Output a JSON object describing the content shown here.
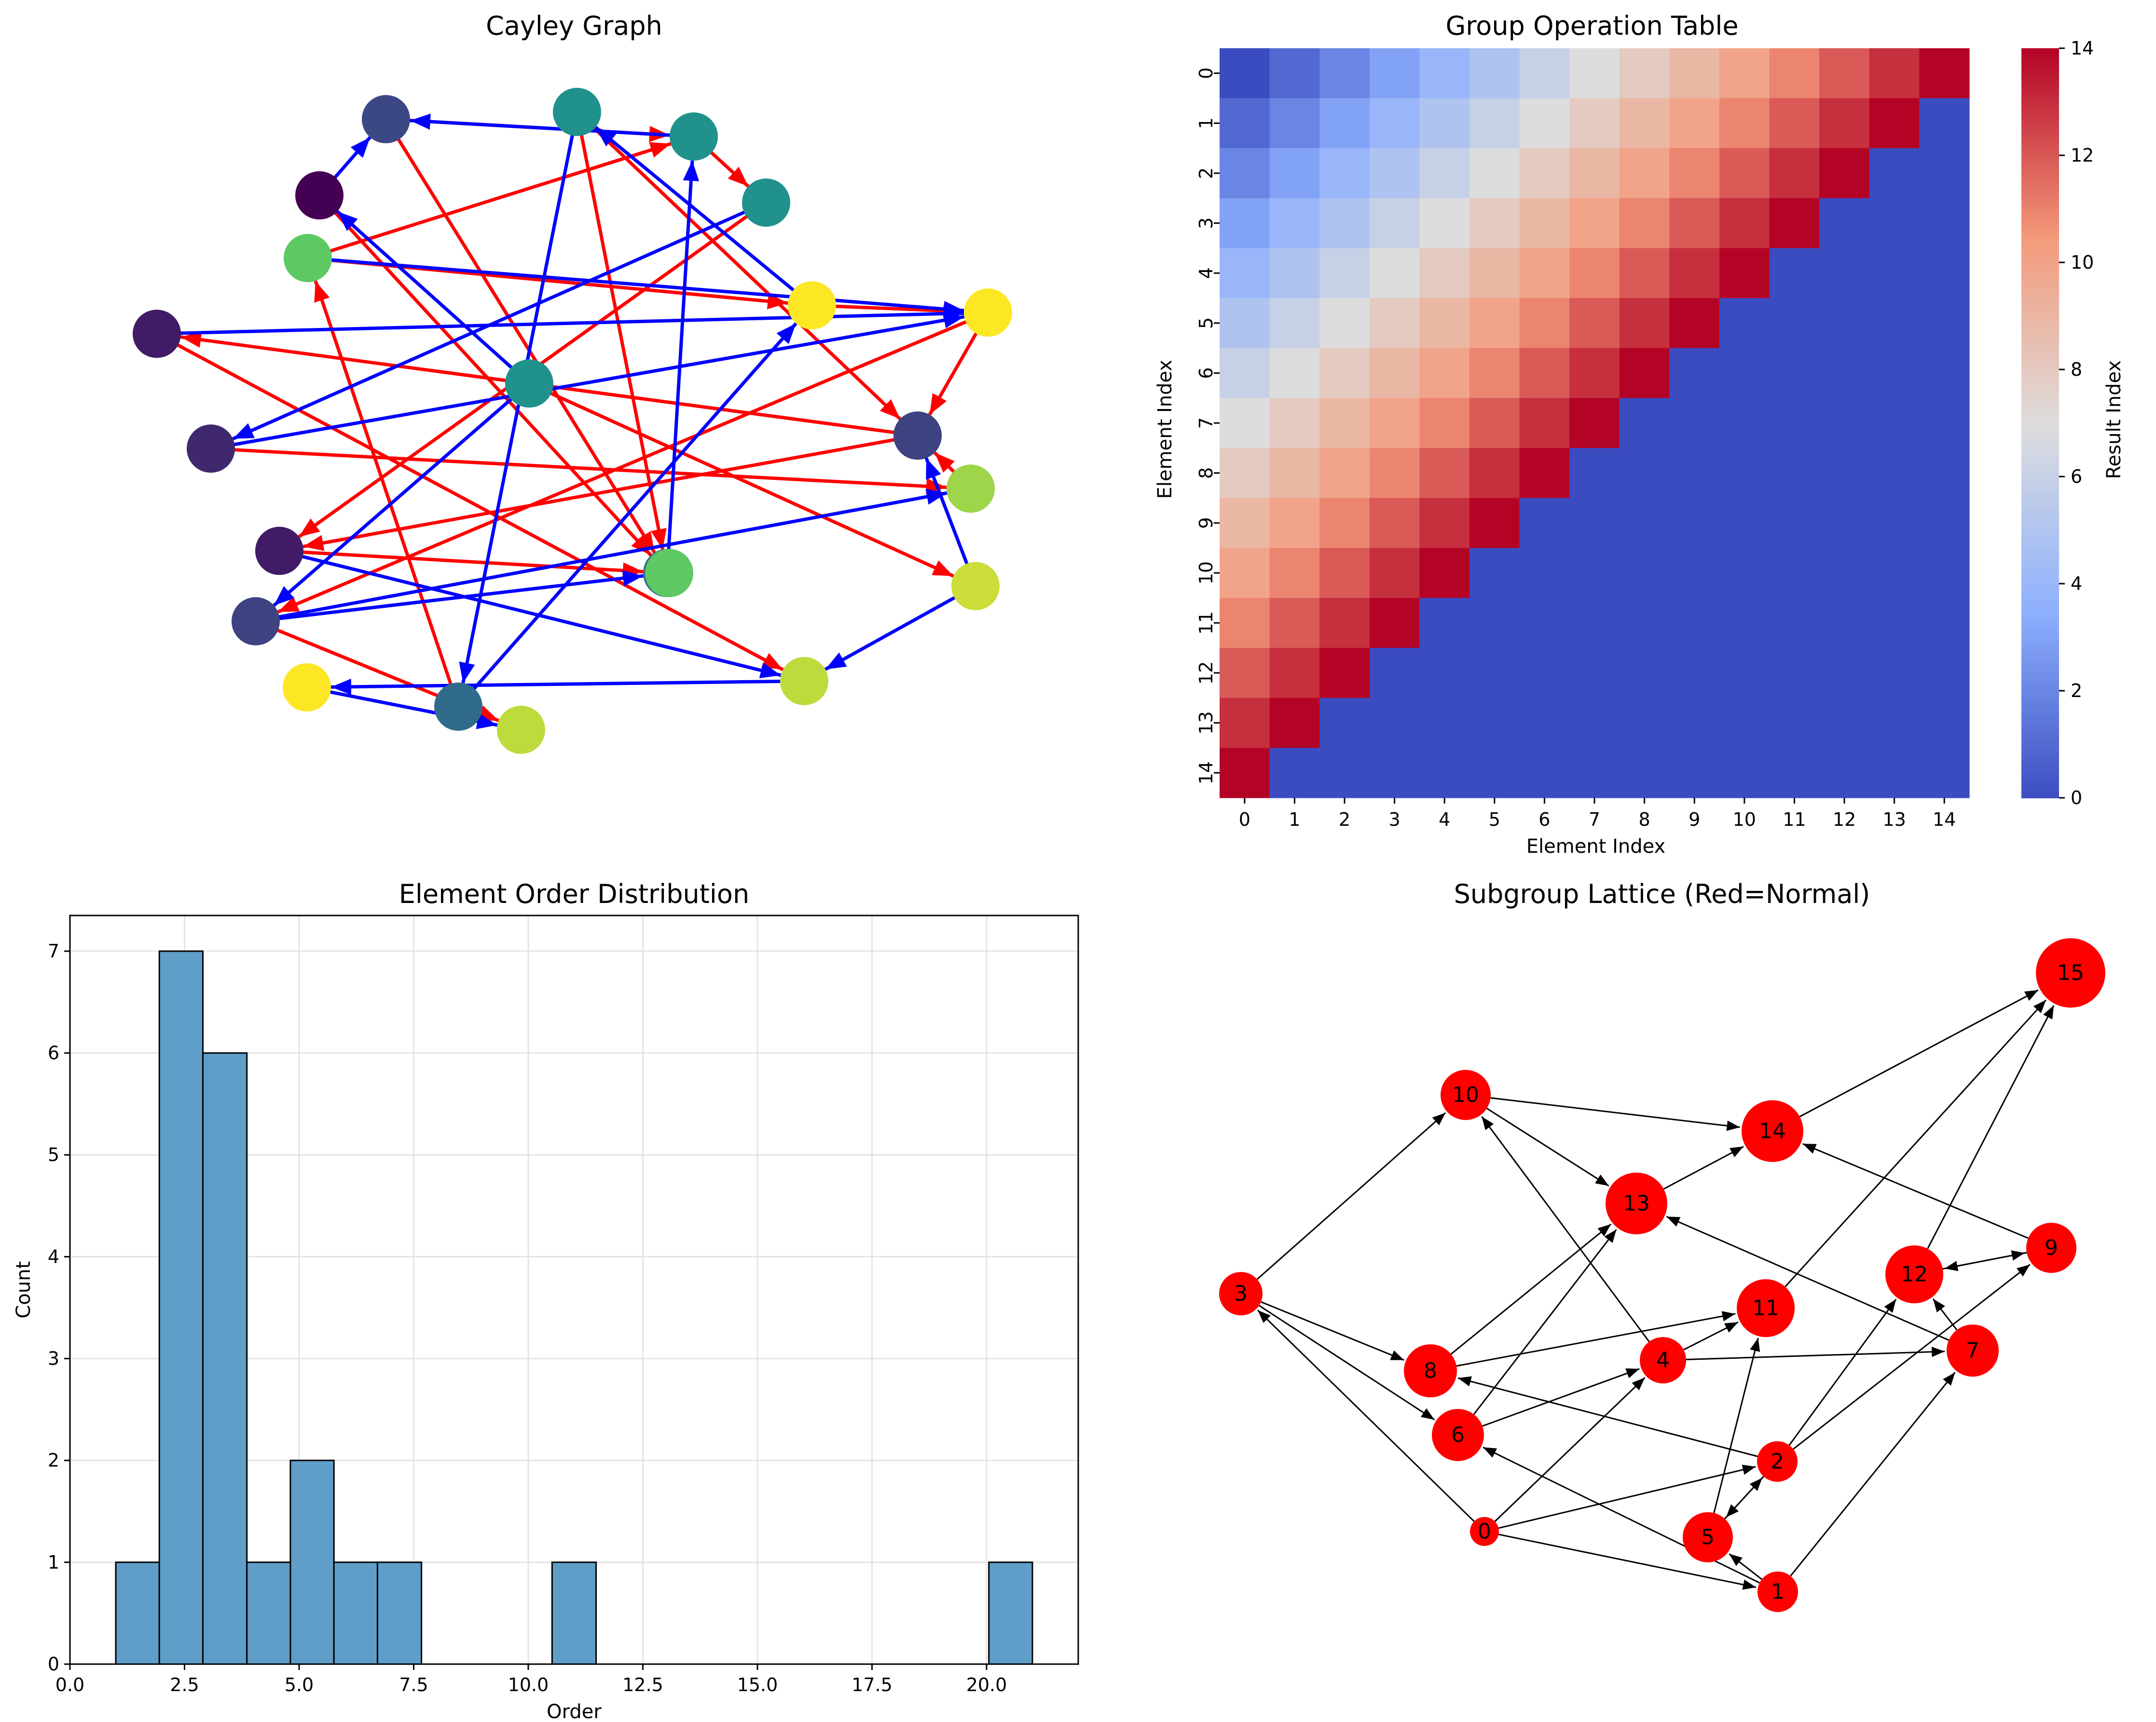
{
  "colors": {
    "red_edge": "#ff0000",
    "blue_edge": "#0000ff",
    "lattice_node": "#ff0000",
    "hist_bar": "#5f9ec9",
    "hist_edge": "#000000",
    "heat_low": "#3b4cc0",
    "heat_mid": "#dddddd",
    "heat_high": "#b40426"
  },
  "chart_data": [
    {
      "type": "network",
      "title": "Cayley Graph",
      "node_colormap": "viridis",
      "node_color_values": [
        0.0,
        0.22,
        0.5,
        0.5,
        0.5,
        0.75,
        0.08,
        1.0,
        0.5,
        1.0,
        0.2,
        0.12,
        0.08,
        0.85,
        0.35,
        0.9,
        0.2,
        0.92,
        1.0,
        0.35,
        0.9,
        0.75
      ],
      "edge_colors": [
        "red",
        "blue"
      ]
    },
    {
      "type": "heatmap",
      "title": "Group Operation Table",
      "xlabel": "Element Index",
      "ylabel": "Element Index",
      "x_ticks": [
        "0",
        "1",
        "2",
        "3",
        "4",
        "5",
        "6",
        "7",
        "8",
        "9",
        "10",
        "11",
        "12",
        "13",
        "14"
      ],
      "y_ticks": [
        "0",
        "1",
        "2",
        "3",
        "4",
        "5",
        "6",
        "7",
        "8",
        "9",
        "10",
        "11",
        "12",
        "13",
        "14"
      ],
      "colorbar": {
        "label": "Result Index",
        "ticks": [
          "0",
          "2",
          "4",
          "6",
          "8",
          "10",
          "12",
          "14"
        ],
        "range": [
          0,
          14
        ]
      },
      "colormap": "coolwarm",
      "rule": "value = i + j if i + j <= 14 else 0"
    },
    {
      "type": "bar",
      "title": "Element Order Distribution",
      "xlabel": "Order",
      "ylabel": "Count",
      "xlim": [
        0,
        22
      ],
      "ylim": [
        0,
        7.35
      ],
      "x_ticks": [
        "0.0",
        "2.5",
        "5.0",
        "7.5",
        "10.0",
        "12.5",
        "15.0",
        "17.5",
        "20.0"
      ],
      "y_ticks": [
        "0",
        "1",
        "2",
        "3",
        "4",
        "5",
        "6",
        "7"
      ],
      "grid": true,
      "bins": [
        {
          "x0": 1.0,
          "x1": 1.95,
          "count": 1
        },
        {
          "x0": 1.95,
          "x1": 2.9,
          "count": 7
        },
        {
          "x0": 2.9,
          "x1": 3.86,
          "count": 6
        },
        {
          "x0": 3.86,
          "x1": 4.81,
          "count": 1
        },
        {
          "x0": 4.81,
          "x1": 5.76,
          "count": 2
        },
        {
          "x0": 5.76,
          "x1": 6.71,
          "count": 1
        },
        {
          "x0": 6.71,
          "x1": 7.67,
          "count": 1
        },
        {
          "x0": 10.52,
          "x1": 11.48,
          "count": 1
        },
        {
          "x0": 20.05,
          "x1": 21.0,
          "count": 1
        }
      ]
    },
    {
      "type": "network",
      "title": "Subgroup Lattice (Red=Normal)",
      "nodes": [
        "0",
        "1",
        "2",
        "3",
        "4",
        "5",
        "6",
        "7",
        "8",
        "9",
        "10",
        "11",
        "12",
        "13",
        "14",
        "15"
      ],
      "edges": [
        [
          "0",
          "1"
        ],
        [
          "0",
          "2"
        ],
        [
          "0",
          "3"
        ],
        [
          "0",
          "4"
        ],
        [
          "1",
          "5"
        ],
        [
          "1",
          "6"
        ],
        [
          "1",
          "7"
        ],
        [
          "2",
          "5"
        ],
        [
          "2",
          "8"
        ],
        [
          "2",
          "9"
        ],
        [
          "2",
          "12"
        ],
        [
          "3",
          "6"
        ],
        [
          "3",
          "8"
        ],
        [
          "3",
          "10"
        ],
        [
          "4",
          "7"
        ],
        [
          "4",
          "10"
        ],
        [
          "4",
          "11"
        ],
        [
          "5",
          "2"
        ],
        [
          "5",
          "11"
        ],
        [
          "6",
          "4"
        ],
        [
          "6",
          "13"
        ],
        [
          "7",
          "12"
        ],
        [
          "7",
          "13"
        ],
        [
          "8",
          "11"
        ],
        [
          "8",
          "13"
        ],
        [
          "9",
          "12"
        ],
        [
          "9",
          "14"
        ],
        [
          "10",
          "13"
        ],
        [
          "10",
          "14"
        ],
        [
          "11",
          "15"
        ],
        [
          "12",
          "15"
        ],
        [
          "12",
          "9"
        ],
        [
          "13",
          "14"
        ],
        [
          "14",
          "15"
        ]
      ]
    }
  ]
}
